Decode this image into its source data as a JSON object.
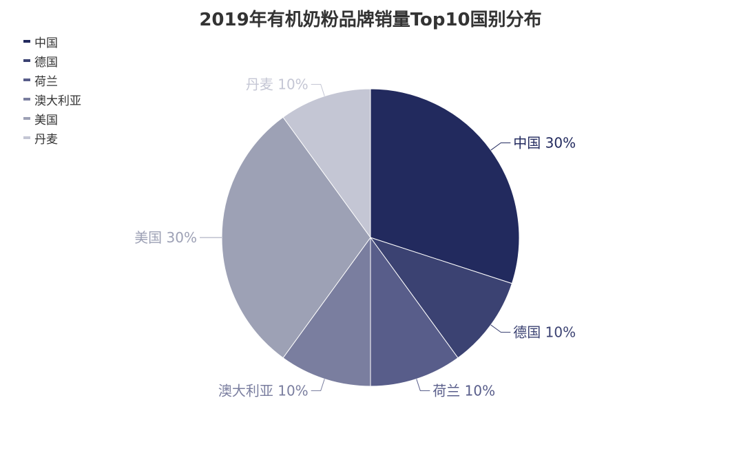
{
  "chart_data": {
    "type": "pie",
    "title": "2019年有机奶粉品牌销量Top10国别分布",
    "legend_position": "top-left",
    "slices": [
      {
        "name": "中国",
        "value": 30,
        "label": "中国 30%",
        "color": "#222a5e"
      },
      {
        "name": "德国",
        "value": 10,
        "label": "德国 10%",
        "color": "#3b4272"
      },
      {
        "name": "荷兰",
        "value": 10,
        "label": "荷兰 10%",
        "color": "#585d8a"
      },
      {
        "name": "澳大利亚",
        "value": 10,
        "label": "澳大利亚 10%",
        "color": "#7a7e9f"
      },
      {
        "name": "美国",
        "value": 30,
        "label": "美国 30%",
        "color": "#9da1b5"
      },
      {
        "name": "丹麦",
        "value": 10,
        "label": "丹麦 10%",
        "color": "#c4c6d4"
      }
    ]
  }
}
